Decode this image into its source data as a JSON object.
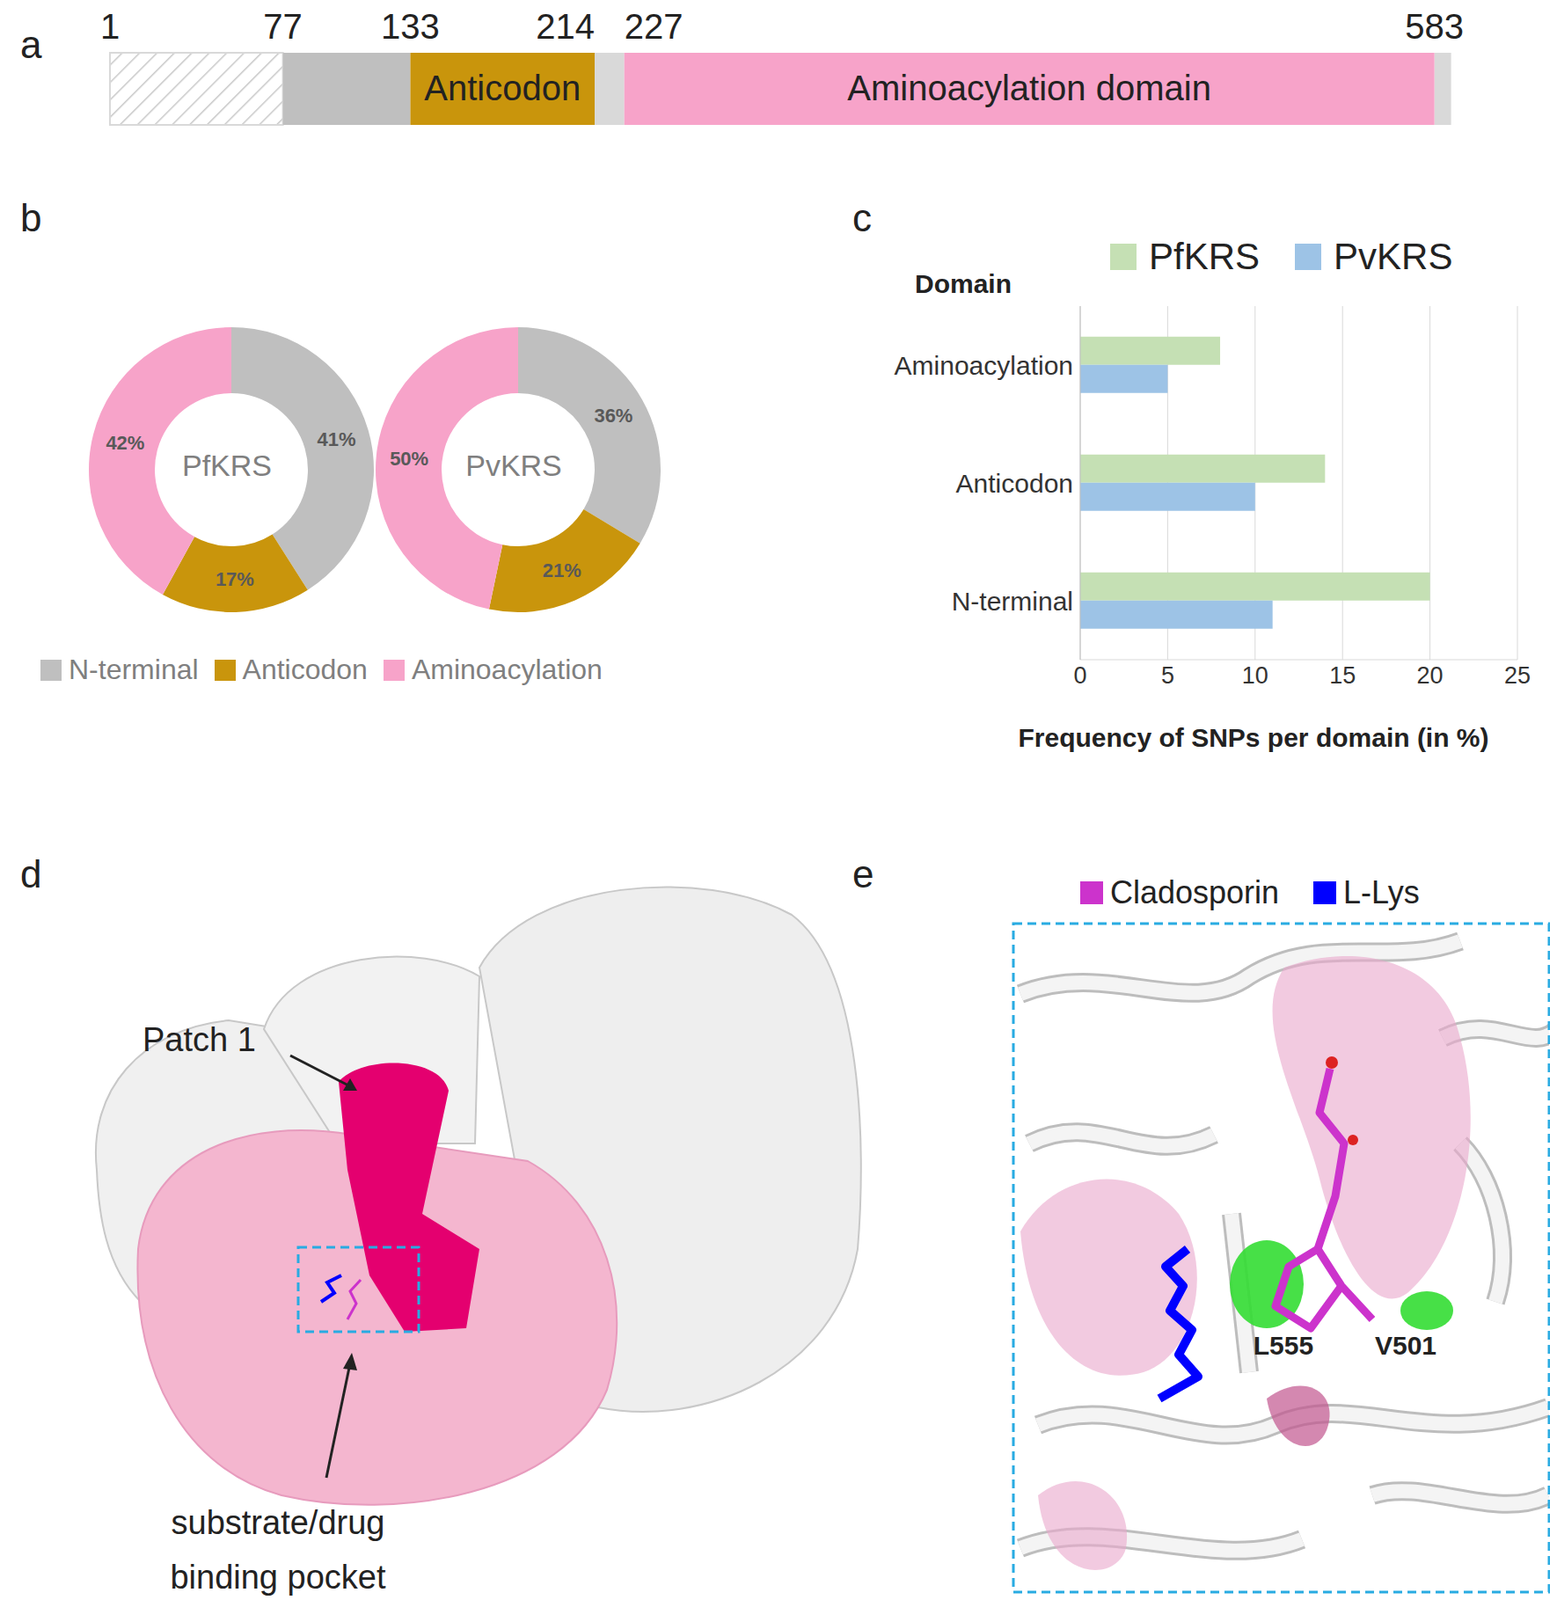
{
  "panel_labels": [
    "a",
    "b",
    "c",
    "d",
    "e"
  ],
  "domain_map": {
    "ticks": [
      1,
      77,
      133,
      214,
      227,
      583
    ],
    "segments": [
      {
        "start": 1,
        "end": 77,
        "color": "#d9d9d9",
        "hatched": true
      },
      {
        "start": 77,
        "end": 133,
        "color": "#bfbfbf"
      },
      {
        "start": 133,
        "end": 214,
        "color": "#c9950c",
        "label": "Anticodon"
      },
      {
        "start": 214,
        "end": 227,
        "color": "#d9d9d9"
      },
      {
        "start": 227,
        "end": 583,
        "color": "#f7a3c9",
        "label": "Aminoacylation domain"
      }
    ]
  },
  "chart_data": [
    {
      "type": "pie",
      "title": "PfKRS",
      "categories": [
        "N-terminal",
        "Anticodon",
        "Aminoacylation"
      ],
      "values": [
        41,
        17,
        42
      ],
      "value_labels": [
        "41%",
        "17%",
        "42%"
      ],
      "colors": [
        "#bfbfbf",
        "#c9950c",
        "#f7a3c9"
      ],
      "data_labels": true,
      "legend": "bottom"
    },
    {
      "type": "pie",
      "title": "PvKRS",
      "categories": [
        "N-terminal",
        "Anticodon",
        "Aminoacylation"
      ],
      "values": [
        36,
        21,
        50
      ],
      "value_labels": [
        "36%",
        "21%",
        "50%"
      ],
      "colors": [
        "#bfbfbf",
        "#c9950c",
        "#f7a3c9"
      ],
      "data_labels": true
    },
    {
      "type": "bar",
      "orientation": "horizontal",
      "y_label": "Domain",
      "x_label": "Frequency of SNPs per domain (in %)",
      "categories": [
        "Aminoacylation",
        "Anticodon",
        "N-terminal"
      ],
      "series": [
        {
          "name": "PfKRS",
          "color": "#c5e0b4",
          "values": [
            8,
            14,
            20
          ]
        },
        {
          "name": "PvKRS",
          "color": "#9dc3e6",
          "values": [
            5,
            10,
            11
          ]
        }
      ],
      "xlim": [
        0,
        25
      ],
      "xticks": [
        0,
        5,
        10,
        15,
        20,
        25
      ],
      "grid": true,
      "legend": "top"
    }
  ],
  "structure_d": {
    "patch_label": "Patch 1",
    "pocket_label": "substrate/drug binding pocket"
  },
  "structure_e": {
    "legend": [
      {
        "name": "Cladosporin",
        "color": "#cc33cc"
      },
      {
        "name": "L-Lys",
        "color": "#0000ff"
      }
    ],
    "residues": [
      "L555",
      "V501"
    ]
  }
}
